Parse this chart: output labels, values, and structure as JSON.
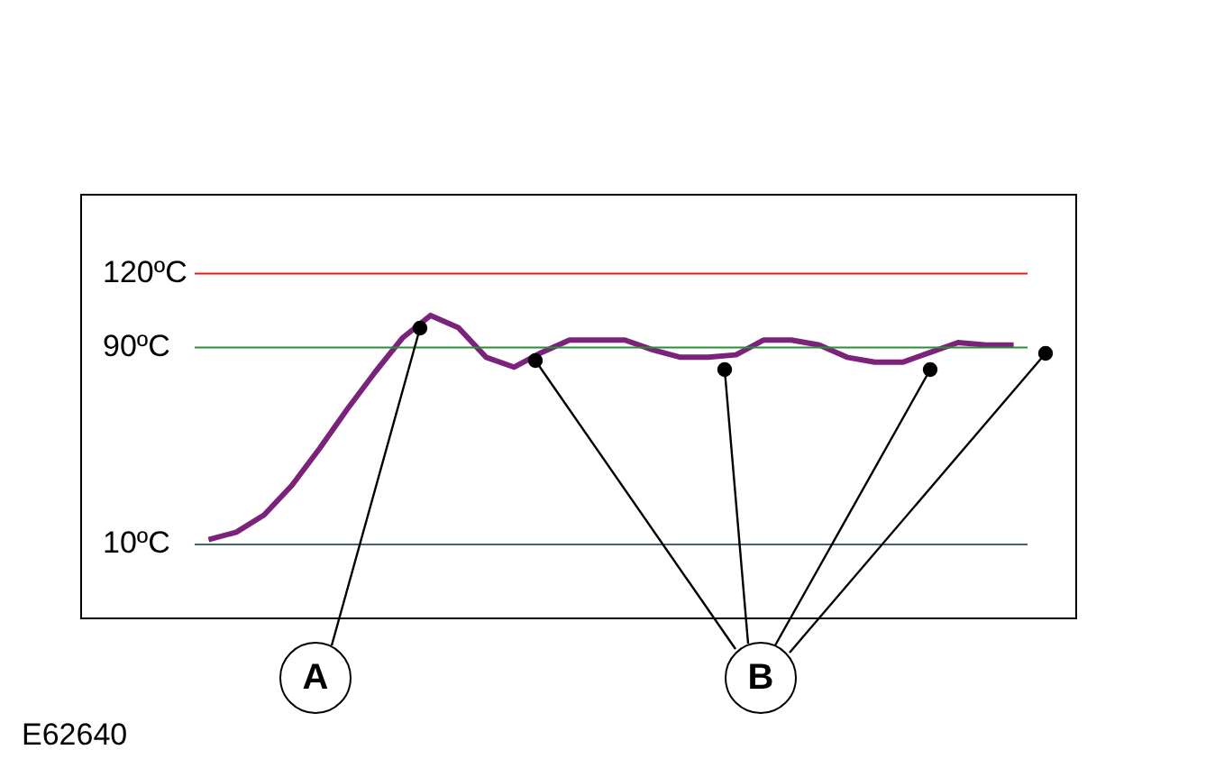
{
  "chart_data": {
    "type": "line",
    "categories": [
      null,
      null,
      null,
      null,
      null,
      null,
      null,
      null,
      null,
      null,
      null,
      null,
      null,
      null,
      null,
      null,
      null,
      null,
      null,
      null,
      null,
      null,
      null,
      null,
      null,
      null,
      null,
      null,
      null,
      null
    ],
    "series": [
      {
        "color": "#7b237b",
        "values": [
          12,
          15,
          22,
          34,
          49,
          65,
          80,
          94,
          103,
          98,
          86,
          82,
          88,
          93,
          93,
          93,
          89,
          86,
          86,
          87,
          93,
          93,
          91,
          86,
          84,
          84,
          88,
          92,
          91,
          91
        ]
      }
    ],
    "ylim": [
      -20,
      152
    ],
    "yticks": [
      {
        "value": 120,
        "label": "120ºC"
      },
      {
        "value": 90,
        "label": "90ºC"
      },
      {
        "value": 10,
        "label": "10ºC"
      }
    ],
    "legend": false,
    "marker": "none",
    "line_style": "solid",
    "ref_lines": [
      {
        "axis": "y",
        "value": 120,
        "color": "#e02020"
      },
      {
        "axis": "y",
        "value": 90,
        "color": "#2e8b3a"
      },
      {
        "axis": "y",
        "value": 10,
        "color": "#3d6670"
      }
    ],
    "annotations": [
      "A",
      "B",
      "E62640"
    ]
  }
}
